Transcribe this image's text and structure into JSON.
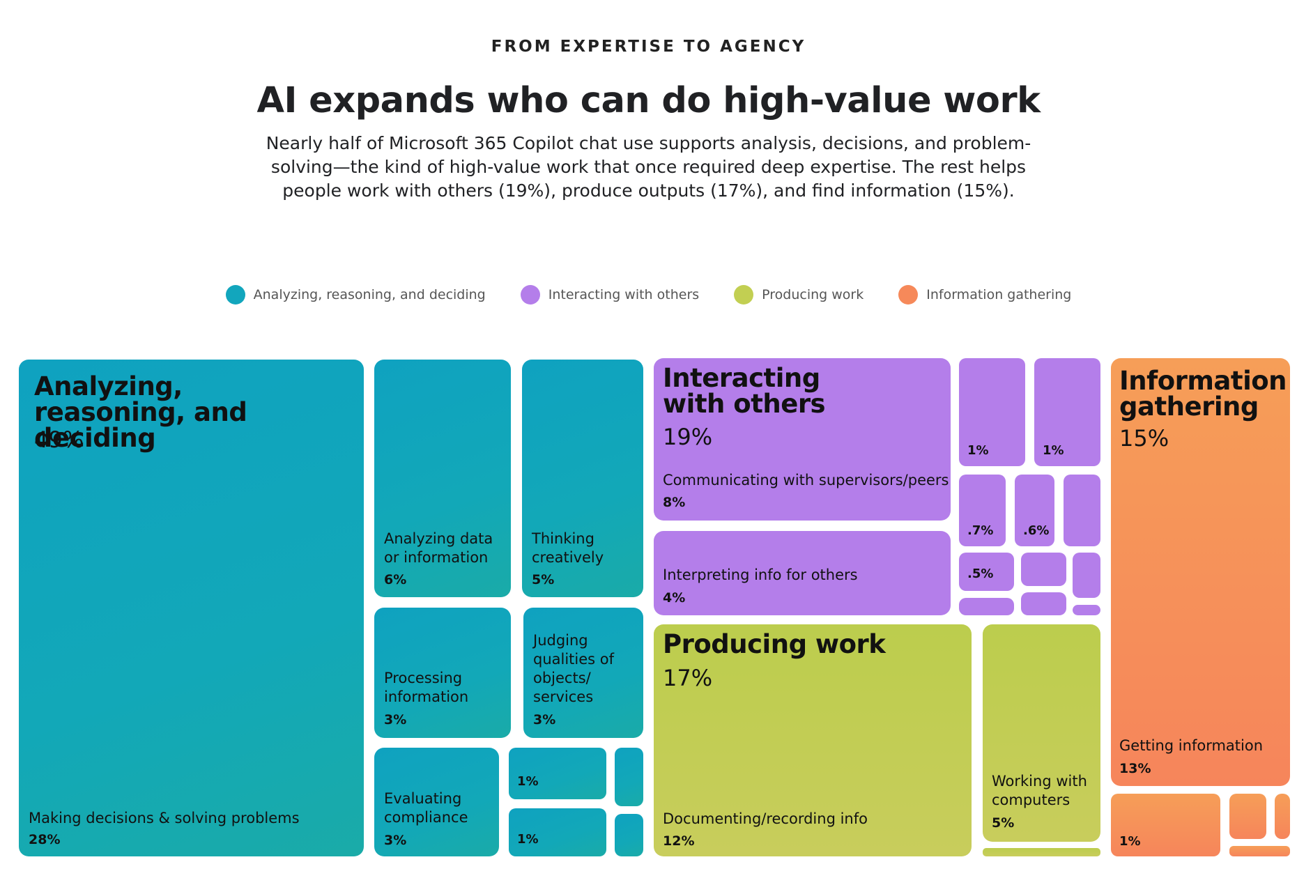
{
  "header": {
    "eyebrow": "FROM EXPERTISE TO AGENCY",
    "title": "AI expands who can do high-value work",
    "subtitle": "Nearly half of Microsoft 365 Copilot chat use supports analysis, decisions, and problem-solving—the kind of high-value work that once required deep expertise. The rest helps people work with others (19%), produce outputs (17%), and find information (15%)."
  },
  "legend": [
    {
      "label": "Analyzing, reasoning, and deciding",
      "color": "#12a6bd"
    },
    {
      "label": "Interacting with others",
      "color": "#b47eea"
    },
    {
      "label": "Producing work",
      "color": "#c2cf52"
    },
    {
      "label": "Information gathering",
      "color": "#f6895a"
    }
  ],
  "chart_data": {
    "type": "treemap",
    "unit": "%",
    "categories": [
      {
        "name": "Analyzing, reasoning, and deciding",
        "value_label": "49%",
        "value": 49,
        "color": "#12a6bd",
        "children": [
          {
            "name": "Making decisions & solving problems",
            "value_label": "28%",
            "value": 28
          },
          {
            "name": "Analyzing data or information",
            "value_label": "6%",
            "value": 6
          },
          {
            "name": "Thinking creatively",
            "value_label": "5%",
            "value": 5
          },
          {
            "name": "Processing information",
            "value_label": "3%",
            "value": 3
          },
          {
            "name": "Judging qualities of objects/ services",
            "value_label": "3%",
            "value": 3
          },
          {
            "name": "Evaluating compliance",
            "value_label": "3%",
            "value": 3
          },
          {
            "name": "",
            "value_label": "1%",
            "value": 1
          },
          {
            "name": "",
            "value_label": "1%",
            "value": 1
          }
        ]
      },
      {
        "name": "Interacting with others",
        "value_label": "19%",
        "value": 19,
        "color": "#b47eea",
        "children": [
          {
            "name": "Communicating with supervisors/peers",
            "value_label": "8%",
            "value": 8
          },
          {
            "name": "Interpreting info for others",
            "value_label": "4%",
            "value": 4
          },
          {
            "name": "",
            "value_label": "1%",
            "value": 1
          },
          {
            "name": "",
            "value_label": "1%",
            "value": 1
          },
          {
            "name": "",
            "value_label": ".7%",
            "value": 0.7
          },
          {
            "name": "",
            "value_label": ".6%",
            "value": 0.6
          },
          {
            "name": "",
            "value_label": ".5%",
            "value": 0.5
          }
        ]
      },
      {
        "name": "Producing work",
        "value_label": "17%",
        "value": 17,
        "color": "#c2cf52",
        "children": [
          {
            "name": "Documenting/recording info",
            "value_label": "12%",
            "value": 12
          },
          {
            "name": "Working with computers",
            "value_label": "5%",
            "value": 5
          }
        ]
      },
      {
        "name": "Information gathering",
        "value_label": "15%",
        "value": 15,
        "color": "#f6895a",
        "children": [
          {
            "name": "Getting information",
            "value_label": "13%",
            "value": 13
          },
          {
            "name": "",
            "value_label": "1%",
            "value": 1
          }
        ]
      }
    ]
  }
}
